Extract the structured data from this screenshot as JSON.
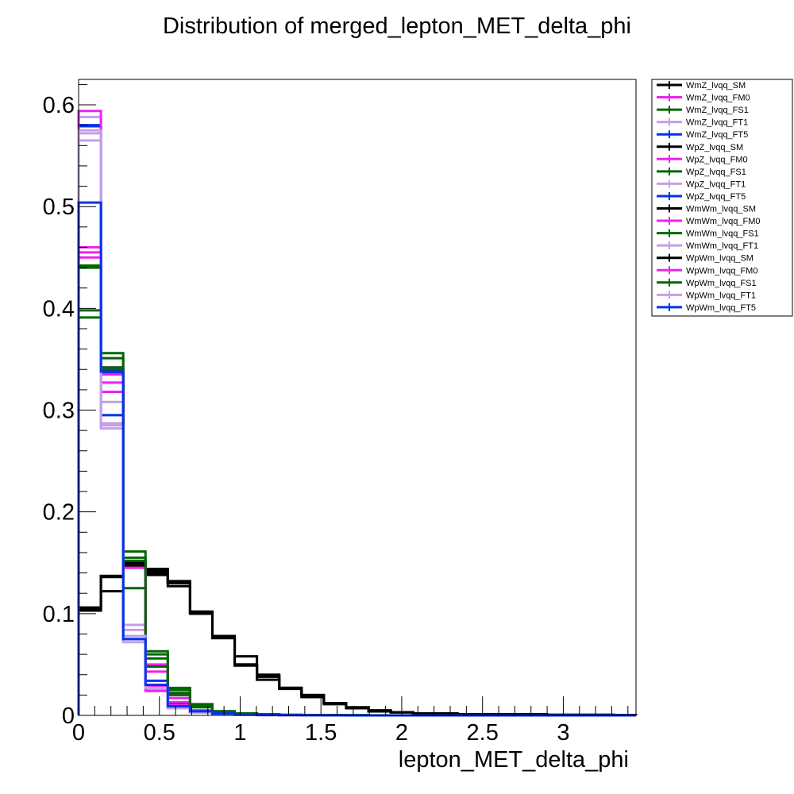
{
  "chart_data": {
    "type": "line",
    "drawstyle": "step",
    "title": "Distribution of merged_lepton_MET_delta_phi",
    "xlabel": "lepton_MET_delta_phi",
    "ylabel": "",
    "xlim": [
      0,
      3.45
    ],
    "ylim": [
      0,
      0.625
    ],
    "grid": false,
    "legend_position": "right",
    "x_ticks": [
      0,
      0.5,
      1,
      1.5,
      2,
      2.5,
      3
    ],
    "x_tick_labels": [
      "0",
      "0.5",
      "1",
      "1.5",
      "2",
      "2.5",
      "3"
    ],
    "y_ticks": [
      0,
      0.1,
      0.2,
      0.3,
      0.4,
      0.5,
      0.6
    ],
    "y_tick_labels": [
      "0",
      "0.1",
      "0.2",
      "0.3",
      "0.4",
      "0.5",
      "0.6"
    ],
    "bin_edges": [
      0,
      0.138,
      0.276,
      0.414,
      0.552,
      0.69,
      0.828,
      0.966,
      1.104,
      1.242,
      1.38,
      1.518,
      1.656,
      1.794,
      1.932,
      2.07,
      2.208,
      2.346,
      2.484,
      2.622,
      2.76,
      2.898,
      3.036,
      3.174,
      3.312,
      3.45
    ],
    "series": [
      {
        "name": "WmZ_lvqq_SM",
        "color": "#000000",
        "values": [
          0.103,
          0.137,
          0.146,
          0.144,
          0.132,
          0.101,
          0.077,
          0.049,
          0.038,
          0.027,
          0.018,
          0.011,
          0.007,
          0.004,
          0.003,
          0.002,
          0.001,
          0.001,
          0.001,
          0.001,
          0.001,
          0.0005,
          0.0005,
          0.0005,
          0.0003
        ]
      },
      {
        "name": "WmZ_lvqq_FM0",
        "color": "#ee22ee",
        "values": [
          0.46,
          0.327,
          0.149,
          0.043,
          0.013,
          0.004,
          0.002,
          0.001,
          0.0005,
          0.0003,
          0.0002,
          0.0001,
          0.0001,
          0,
          0,
          0,
          0,
          0,
          0,
          0,
          0,
          0,
          0,
          0,
          0
        ]
      },
      {
        "name": "WmZ_lvqq_FS1",
        "color": "#006600",
        "values": [
          0.398,
          0.356,
          0.161,
          0.063,
          0.027,
          0.011,
          0.004,
          0.002,
          0.001,
          0.0005,
          0.0003,
          0.0002,
          0.0001,
          0,
          0,
          0,
          0,
          0,
          0,
          0,
          0,
          0,
          0,
          0,
          0
        ]
      },
      {
        "name": "WmZ_lvqq_FT1",
        "color": "#c49fe8",
        "values": [
          0.572,
          0.308,
          0.089,
          0.025,
          0.007,
          0.003,
          0.001,
          0.0005,
          0.0003,
          0.0002,
          0.0001,
          0,
          0,
          0,
          0,
          0,
          0,
          0,
          0,
          0,
          0,
          0,
          0,
          0,
          0
        ]
      },
      {
        "name": "WmZ_lvqq_FT5",
        "color": "#0033ee",
        "values": [
          0.58,
          0.337,
          0.075,
          0.034,
          0.011,
          0.004,
          0.002,
          0.001,
          0.0005,
          0.0003,
          0.0002,
          0.0001,
          0,
          0,
          0,
          0,
          0,
          0,
          0,
          0,
          0,
          0,
          0,
          0,
          0
        ]
      },
      {
        "name": "WpZ_lvqq_SM",
        "color": "#000000",
        "values": [
          0.106,
          0.122,
          0.148,
          0.138,
          0.127,
          0.102,
          0.078,
          0.058,
          0.035,
          0.026,
          0.02,
          0.012,
          0.008,
          0.005,
          0.003,
          0.002,
          0.002,
          0.001,
          0.001,
          0.001,
          0.001,
          0.0005,
          0.0005,
          0.0005,
          0.0003
        ]
      },
      {
        "name": "WpZ_lvqq_FM0",
        "color": "#ee22ee",
        "values": [
          0.45,
          0.335,
          0.146,
          0.05,
          0.017,
          0.005,
          0.002,
          0.001,
          0.0005,
          0.0003,
          0.0002,
          0.0001,
          0.0001,
          0,
          0,
          0,
          0,
          0,
          0,
          0,
          0,
          0,
          0,
          0,
          0
        ]
      },
      {
        "name": "WpZ_lvqq_FS1",
        "color": "#006600",
        "values": [
          0.442,
          0.351,
          0.155,
          0.056,
          0.025,
          0.009,
          0.004,
          0.002,
          0.001,
          0.0005,
          0.0003,
          0.0002,
          0.0001,
          0,
          0,
          0,
          0,
          0,
          0,
          0,
          0,
          0,
          0,
          0,
          0
        ]
      },
      {
        "name": "WpZ_lvqq_FT1",
        "color": "#c49fe8",
        "values": [
          0.588,
          0.287,
          0.084,
          0.028,
          0.008,
          0.003,
          0.001,
          0.0005,
          0.0003,
          0.0002,
          0.0001,
          0,
          0,
          0,
          0,
          0,
          0,
          0,
          0,
          0,
          0,
          0,
          0,
          0,
          0
        ]
      },
      {
        "name": "WpZ_lvqq_FT5",
        "color": "#0033ee",
        "values": [
          0.579,
          0.295,
          0.078,
          0.03,
          0.009,
          0.004,
          0.002,
          0.001,
          0.0005,
          0.0003,
          0.0002,
          0.0001,
          0,
          0,
          0,
          0,
          0,
          0,
          0,
          0,
          0,
          0,
          0,
          0,
          0
        ]
      },
      {
        "name": "WmWm_lvqq_SM",
        "color": "#000000",
        "values": [
          0.104,
          0.137,
          0.147,
          0.142,
          0.13,
          0.1,
          0.076,
          0.05,
          0.04,
          0.027,
          0.02,
          0.012,
          0.007,
          0.004,
          0.003,
          0.002,
          0.001,
          0.001,
          0.001,
          0.001,
          0.001,
          0.0005,
          0.0005,
          0.0005,
          0.0003
        ]
      },
      {
        "name": "WmWm_lvqq_FM0",
        "color": "#ee22ee",
        "values": [
          0.594,
          0.318,
          0.15,
          0.028,
          0.01,
          0.003,
          0.002,
          0.001,
          0.0005,
          0.0003,
          0.0002,
          0.0001,
          0,
          0,
          0,
          0,
          0,
          0,
          0,
          0,
          0,
          0,
          0,
          0,
          0
        ]
      },
      {
        "name": "WmWm_lvqq_FS1",
        "color": "#006600",
        "values": [
          0.391,
          0.34,
          0.125,
          0.048,
          0.02,
          0.008,
          0.004,
          0.002,
          0.001,
          0.0005,
          0.0003,
          0.0002,
          0.0001,
          0,
          0,
          0,
          0,
          0,
          0,
          0,
          0,
          0,
          0,
          0,
          0
        ]
      },
      {
        "name": "WmWm_lvqq_FT1",
        "color": "#c49fe8",
        "values": [
          0.565,
          0.282,
          0.072,
          0.025,
          0.007,
          0.003,
          0.001,
          0.0005,
          0.0003,
          0.0002,
          0.0001,
          0,
          0,
          0,
          0,
          0,
          0,
          0,
          0,
          0,
          0,
          0,
          0,
          0,
          0
        ]
      },
      {
        "name": "WpWm_lvqq_SM",
        "color": "#000000",
        "values": [
          0.105,
          0.136,
          0.15,
          0.14,
          0.13,
          0.1,
          0.076,
          0.05,
          0.038,
          0.027,
          0.018,
          0.012,
          0.007,
          0.004,
          0.003,
          0.002,
          0.001,
          0.001,
          0.001,
          0.001,
          0.001,
          0.0005,
          0.0005,
          0.0005,
          0.0003
        ]
      },
      {
        "name": "WpWm_lvqq_FM0",
        "color": "#ee22ee",
        "values": [
          0.455,
          0.342,
          0.145,
          0.024,
          0.022,
          0.004,
          0.002,
          0.001,
          0.0005,
          0.0003,
          0.0002,
          0.0001,
          0,
          0,
          0,
          0,
          0,
          0,
          0,
          0,
          0,
          0,
          0,
          0,
          0
        ]
      },
      {
        "name": "WpWm_lvqq_FS1",
        "color": "#006600",
        "values": [
          0.44,
          0.342,
          0.152,
          0.06,
          0.022,
          0.009,
          0.004,
          0.002,
          0.001,
          0.0005,
          0.0003,
          0.0002,
          0.0001,
          0,
          0,
          0,
          0,
          0,
          0,
          0,
          0,
          0,
          0,
          0,
          0
        ]
      },
      {
        "name": "WpWm_lvqq_FT1",
        "color": "#c49fe8",
        "values": [
          0.575,
          0.285,
          0.078,
          0.027,
          0.007,
          0.003,
          0.001,
          0.0005,
          0.0003,
          0.0002,
          0.0001,
          0,
          0,
          0,
          0,
          0,
          0,
          0,
          0,
          0,
          0,
          0,
          0,
          0,
          0
        ]
      },
      {
        "name": "WpWm_lvqq_FT5",
        "color": "#0033ee",
        "values": [
          0.504,
          0.338,
          0.075,
          0.03,
          0.009,
          0.004,
          0.002,
          0.001,
          0.0005,
          0.0003,
          0.0002,
          0.0001,
          0,
          0,
          0,
          0,
          0,
          0,
          0,
          0,
          0,
          0,
          0,
          0,
          0
        ]
      }
    ]
  }
}
